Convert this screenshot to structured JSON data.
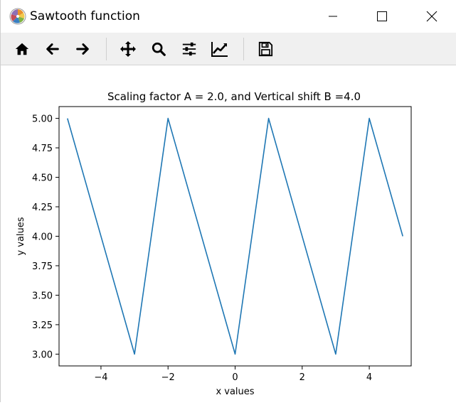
{
  "window": {
    "title": "Sawtooth function"
  },
  "icons": {
    "app": "matplotlib-logo-icon",
    "minimize": "minimize-icon",
    "maximize": "maximize-icon",
    "close": "close-icon",
    "home": "home-icon",
    "back": "arrow-left-icon",
    "forward": "arrow-right-icon",
    "pan": "move-arrows-icon",
    "zoom": "magnifier-icon",
    "subplots": "sliders-icon",
    "customize": "line-chart-edit-icon",
    "save": "floppy-disk-icon"
  },
  "chart_data": {
    "type": "line",
    "title": "Scaling factor A = 2.0, and Vertical shift B =4.0",
    "xlabel": "x values",
    "ylabel": "y values",
    "xlim": [
      -5.25,
      5.25
    ],
    "ylim": [
      2.9,
      5.1
    ],
    "xticks": [
      -4,
      -2,
      0,
      2,
      4
    ],
    "xtick_labels": [
      "−4",
      "−2",
      "0",
      "2",
      "4"
    ],
    "yticks": [
      3.0,
      3.25,
      3.5,
      3.75,
      4.0,
      4.25,
      4.5,
      4.75,
      5.0
    ],
    "ytick_labels": [
      "3.00",
      "3.25",
      "3.50",
      "3.75",
      "4.00",
      "4.25",
      "4.50",
      "4.75",
      "5.00"
    ],
    "grid": false,
    "color": "#1f77b4",
    "series": [
      {
        "x": [
          -5,
          -3,
          -2,
          0,
          1,
          3,
          4,
          5
        ],
        "y": [
          5.0,
          3.0,
          5.0,
          3.0,
          5.0,
          3.0,
          5.0,
          4.0
        ]
      }
    ]
  }
}
